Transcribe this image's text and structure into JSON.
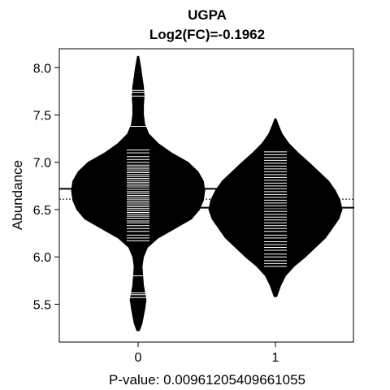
{
  "chart_data": {
    "type": "beanplot",
    "title": "UGPA",
    "subtitle": "Log2(FC)=-0.1962",
    "xlabel": "P-value: 0.00961205409661055",
    "ylabel": "Abundance",
    "categories": [
      "0",
      "1"
    ],
    "ylim": [
      5.1,
      8.2
    ],
    "yticks": [
      5.5,
      6.0,
      6.5,
      7.0,
      7.5,
      8.0
    ],
    "ytick_labels": [
      "5.5",
      "6.0",
      "6.5",
      "7.0",
      "7.5",
      "8.0"
    ],
    "overall_mean": 6.61,
    "groups": [
      {
        "category": "0",
        "mean": 6.72,
        "density": [
          [
            5.22,
            0.02
          ],
          [
            5.3,
            0.06
          ],
          [
            5.45,
            0.1
          ],
          [
            5.55,
            0.12
          ],
          [
            5.62,
            0.1
          ],
          [
            5.7,
            0.08
          ],
          [
            5.8,
            0.07
          ],
          [
            5.9,
            0.06
          ],
          [
            6.0,
            0.08
          ],
          [
            6.1,
            0.14
          ],
          [
            6.2,
            0.3
          ],
          [
            6.3,
            0.55
          ],
          [
            6.4,
            0.8
          ],
          [
            6.5,
            0.92
          ],
          [
            6.6,
            0.98
          ],
          [
            6.7,
            1.0
          ],
          [
            6.8,
            0.98
          ],
          [
            6.9,
            0.9
          ],
          [
            7.0,
            0.75
          ],
          [
            7.1,
            0.5
          ],
          [
            7.2,
            0.3
          ],
          [
            7.3,
            0.16
          ],
          [
            7.4,
            0.1
          ],
          [
            7.5,
            0.08
          ],
          [
            7.6,
            0.08
          ],
          [
            7.7,
            0.09
          ],
          [
            7.8,
            0.08
          ],
          [
            7.9,
            0.06
          ],
          [
            8.0,
            0.04
          ],
          [
            8.12,
            0.01
          ]
        ],
        "points": [
          5.57,
          5.6,
          5.62,
          5.8,
          6.17,
          6.2,
          6.23,
          6.27,
          6.3,
          6.33,
          6.36,
          6.38,
          6.41,
          6.43,
          6.45,
          6.47,
          6.49,
          6.51,
          6.53,
          6.55,
          6.57,
          6.59,
          6.61,
          6.63,
          6.65,
          6.67,
          6.69,
          6.71,
          6.73,
          6.75,
          6.77,
          6.79,
          6.81,
          6.83,
          6.85,
          6.87,
          6.89,
          6.91,
          6.93,
          6.95,
          6.97,
          7.0,
          7.03,
          7.06,
          7.1,
          7.13,
          7.38,
          7.7,
          7.74,
          7.76
        ]
      },
      {
        "category": "1",
        "mean": 6.52,
        "density": [
          [
            5.58,
            0.02
          ],
          [
            5.7,
            0.08
          ],
          [
            5.8,
            0.15
          ],
          [
            5.9,
            0.28
          ],
          [
            6.0,
            0.45
          ],
          [
            6.1,
            0.6
          ],
          [
            6.2,
            0.75
          ],
          [
            6.3,
            0.85
          ],
          [
            6.4,
            0.95
          ],
          [
            6.5,
            1.0
          ],
          [
            6.6,
            0.97
          ],
          [
            6.7,
            0.9
          ],
          [
            6.8,
            0.8
          ],
          [
            6.9,
            0.65
          ],
          [
            7.0,
            0.5
          ],
          [
            7.1,
            0.34
          ],
          [
            7.2,
            0.2
          ],
          [
            7.3,
            0.1
          ],
          [
            7.4,
            0.04
          ],
          [
            7.46,
            0.01
          ]
        ],
        "points": [
          5.9,
          5.93,
          5.96,
          6.0,
          6.03,
          6.07,
          6.1,
          6.13,
          6.16,
          6.2,
          6.23,
          6.27,
          6.3,
          6.33,
          6.36,
          6.39,
          6.42,
          6.45,
          6.48,
          6.51,
          6.54,
          6.57,
          6.6,
          6.63,
          6.66,
          6.69,
          6.72,
          6.75,
          6.78,
          6.81,
          6.84,
          6.87,
          6.9,
          6.93,
          6.96,
          6.99,
          7.02,
          7.05,
          7.08,
          7.11
        ]
      }
    ],
    "colors": {
      "bean": "#000000",
      "points": "#ffffff",
      "overall_mean_line": "#000000"
    }
  }
}
